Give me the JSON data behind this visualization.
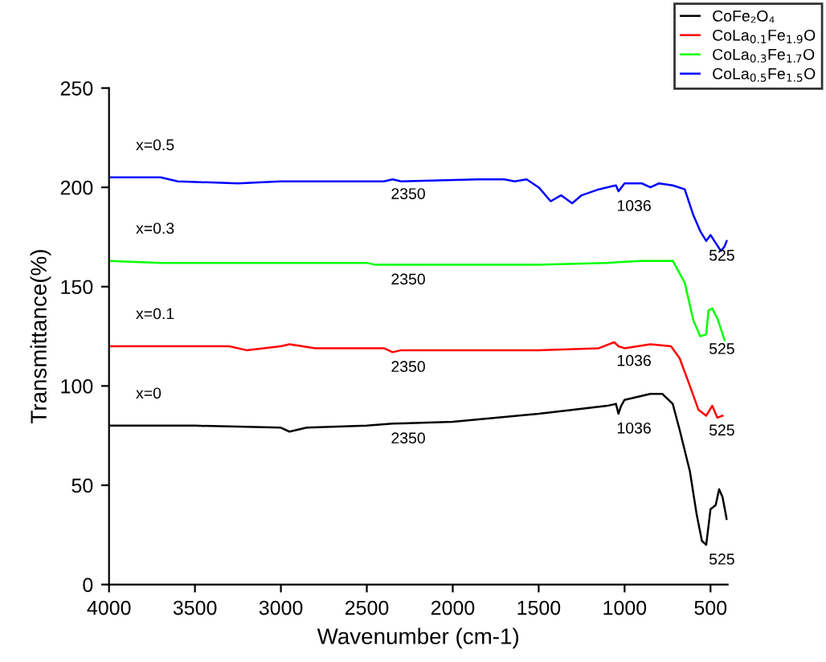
{
  "chart_data": {
    "type": "line",
    "xlabel": "Wavenumber (cm-1)",
    "ylabel": "Transmittance(%)",
    "xlim": [
      4000,
      400
    ],
    "ylim": [
      0,
      250
    ],
    "xticks": [
      4000,
      3500,
      3000,
      2500,
      2000,
      1500,
      1000,
      500
    ],
    "yticks": [
      0,
      50,
      100,
      150,
      200,
      250
    ],
    "grid": false,
    "legend": "top right",
    "marker": "none",
    "line_style": "solid",
    "series": [
      {
        "name": "CoFe₂O₄",
        "color": "#000000",
        "x": [
          4000,
          3500,
          3000,
          2950,
          2850,
          2500,
          2350,
          2000,
          1500,
          1100,
          1050,
          1036,
          1020,
          1000,
          850,
          780,
          720,
          680,
          620,
          580,
          550,
          525,
          500,
          470,
          450,
          430,
          406
        ],
        "values": [
          80,
          80,
          79,
          77,
          79,
          80,
          81,
          82,
          86,
          90,
          91,
          86,
          90,
          93,
          96,
          96,
          91,
          78,
          57,
          35,
          22,
          20,
          38,
          40,
          48,
          44,
          33
        ]
      },
      {
        "name": "CoLa$_{0.1}$Fe$_{1.9}$O",
        "color": "#ff0000",
        "x": [
          4000,
          3300,
          3200,
          3000,
          2950,
          2800,
          2400,
          2350,
          2300,
          1500,
          1150,
          1060,
          1036,
          1000,
          850,
          730,
          680,
          620,
          570,
          525,
          490,
          460,
          430
        ],
        "values": [
          120,
          120,
          118,
          120,
          121,
          119,
          119,
          117,
          118,
          118,
          119,
          122,
          120,
          119,
          121,
          120,
          114,
          100,
          88,
          85,
          90,
          84,
          85
        ]
      },
      {
        "name": "CoLa$_{0.3}$Fe$_{1.7}$O",
        "color": "#00ff00",
        "x": [
          4000,
          3700,
          3000,
          2500,
          2450,
          2350,
          2000,
          1500,
          1100,
          900,
          720,
          650,
          600,
          560,
          525,
          512,
          490,
          460,
          418
        ],
        "values": [
          163,
          162,
          162,
          162,
          161,
          161,
          161,
          161,
          162,
          163,
          163,
          152,
          133,
          125,
          126,
          138,
          139,
          134,
          123
        ]
      },
      {
        "name": "CoLa$_{0.5}$Fe$_{1.5}$O",
        "color": "#0000ff",
        "x": [
          4000,
          3700,
          3600,
          3250,
          3000,
          2400,
          2350,
          2300,
          1850,
          1700,
          1640,
          1570,
          1500,
          1430,
          1370,
          1305,
          1250,
          1150,
          1050,
          1036,
          1000,
          900,
          850,
          800,
          720,
          650,
          600,
          560,
          525,
          500,
          470,
          440,
          420,
          405
        ],
        "values": [
          205,
          205,
          203,
          202,
          203,
          203,
          204,
          203,
          204,
          204,
          203,
          204,
          200,
          193,
          196,
          192,
          196,
          199,
          201,
          198,
          202,
          202,
          200,
          202,
          201,
          199,
          186,
          178,
          173,
          176,
          172,
          168,
          170,
          173
        ]
      }
    ],
    "annotations": [
      "x=0",
      "x=0.1",
      "x=0.3",
      "x=0.5",
      {
        "text": "2350",
        "x": 2350,
        "y": 204
      },
      {
        "text": "1036",
        "x": 1036,
        "y": 198
      },
      {
        "text": "525",
        "x": 525,
        "y": 173
      },
      {
        "text": "2350",
        "x": 2350,
        "y": 161
      },
      {
        "text": "525",
        "x": 525,
        "y": 126
      },
      {
        "text": "2350",
        "x": 2350,
        "y": 117
      },
      {
        "text": "1036",
        "x": 1036,
        "y": 120
      },
      {
        "text": "525",
        "x": 525,
        "y": 85
      },
      {
        "text": "2350",
        "x": 2350,
        "y": 81
      },
      {
        "text": "1036",
        "x": 1036,
        "y": 86
      },
      {
        "text": "525",
        "x": 525,
        "y": 20
      }
    ]
  }
}
